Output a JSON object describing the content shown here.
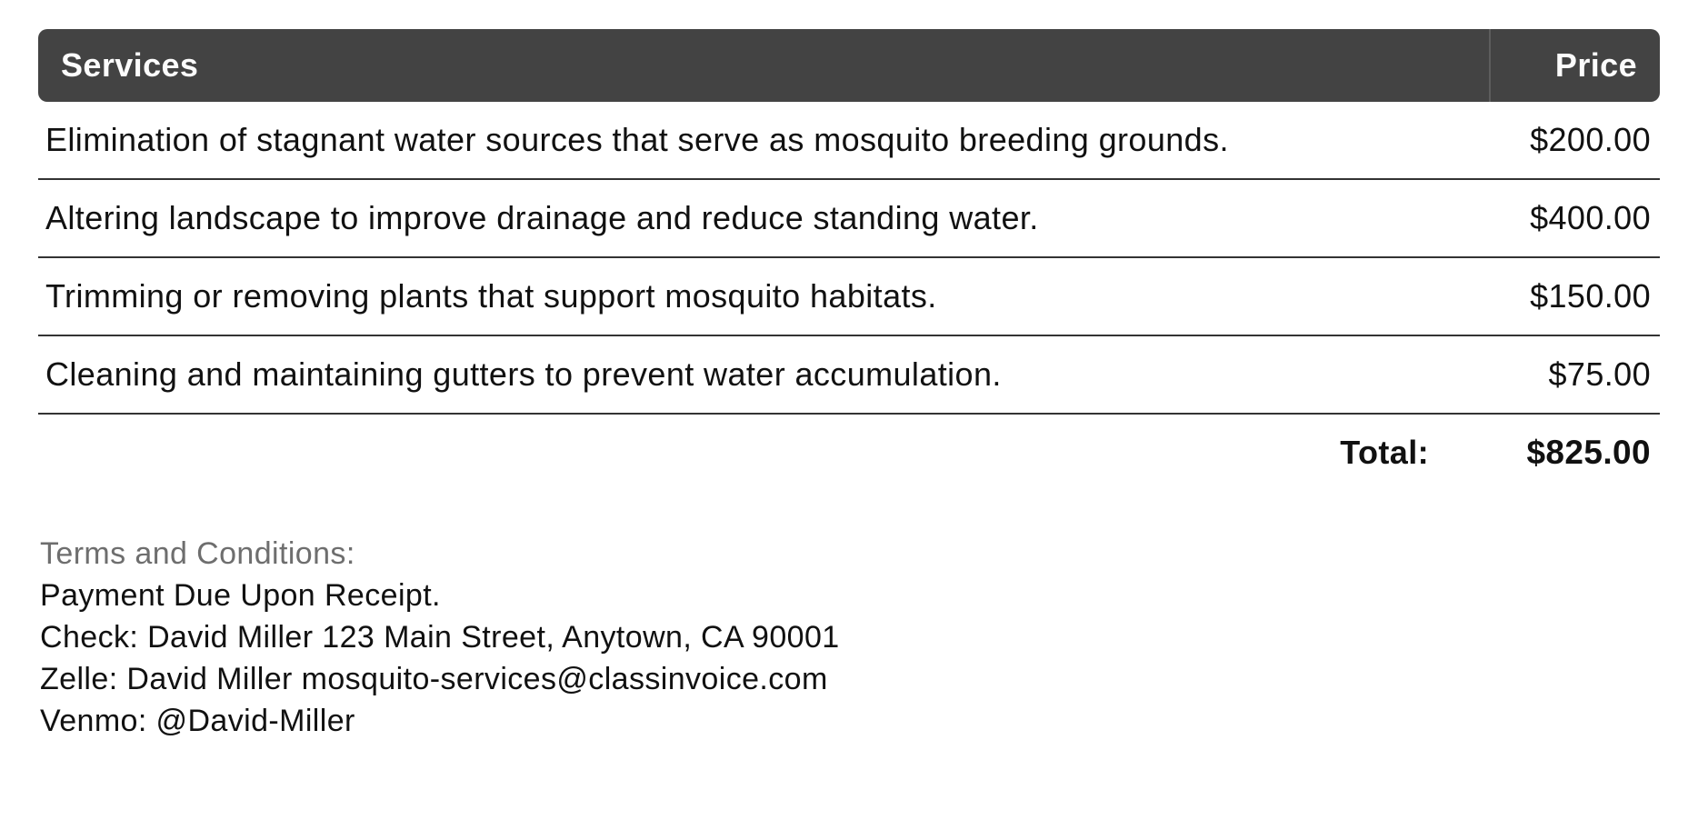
{
  "table": {
    "header": {
      "services": "Services",
      "price": "Price"
    },
    "rows": [
      {
        "service": "Elimination of stagnant water sources that serve as mosquito breeding grounds.",
        "price": "$200.00"
      },
      {
        "service": "Altering landscape to improve drainage and reduce standing water.",
        "price": "$400.00"
      },
      {
        "service": "Trimming or removing plants that support mosquito habitats.",
        "price": "$150.00"
      },
      {
        "service": "Cleaning and maintaining gutters to prevent water accumulation.",
        "price": "$75.00"
      }
    ],
    "total": {
      "label": "Total:",
      "value": "$825.00"
    }
  },
  "terms": {
    "heading": "Terms and Conditions:",
    "lines": [
      "Payment Due Upon Receipt.",
      "Check: David Miller 123 Main Street, Anytown, CA 90001",
      "Zelle: David Miller mosquito-services@classinvoice.com",
      "Venmo: @David-Miller"
    ]
  },
  "colors": {
    "header_bg": "#434343",
    "header_text": "#fcfcfc",
    "header_divider": "#5d5d5d",
    "row_border": "#333333",
    "body_text": "#111111",
    "terms_heading_text": "#6e6e6e"
  }
}
